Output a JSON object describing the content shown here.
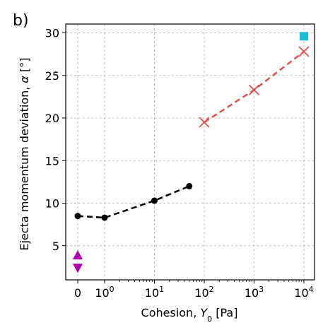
{
  "chart_data": {
    "type": "scatter",
    "panel_label": "b)",
    "xlabel": {
      "prefix": "Cohesion, ",
      "var": "Y",
      "sub": "0",
      "suffix": " [Pa]"
    },
    "ylabel": {
      "prefix": "Ejecta momentum deviation, ",
      "var": "α",
      "suffix": " [°]"
    },
    "x_scale": "symlog",
    "x_ticks": [
      {
        "value": 0,
        "base": "0",
        "exp": ""
      },
      {
        "value": 1,
        "base": "10",
        "exp": "0"
      },
      {
        "value": 10,
        "base": "10",
        "exp": "1"
      },
      {
        "value": 100,
        "base": "10",
        "exp": "2"
      },
      {
        "value": 1000,
        "base": "10",
        "exp": "3"
      },
      {
        "value": 10000,
        "base": "10",
        "exp": "4"
      }
    ],
    "y_ticks": [
      "5",
      "10",
      "15",
      "20",
      "25",
      "30"
    ],
    "ylim": [
      1,
      31
    ],
    "grid": true,
    "series": [
      {
        "marker": "circle",
        "line": "dashed",
        "color": "#000000",
        "x": [
          0,
          1,
          10,
          50
        ],
        "y": [
          8.5,
          8.3,
          10.3,
          12.0
        ]
      },
      {
        "marker": "x",
        "line": "dashed",
        "color": "#e05050",
        "x": [
          100,
          1000,
          10000
        ],
        "y": [
          19.5,
          23.3,
          27.8
        ]
      },
      {
        "marker": "square",
        "line": "none",
        "color": "#17becf",
        "x": [
          10000
        ],
        "y": [
          29.6
        ]
      },
      {
        "marker": "triangle-up",
        "line": "none",
        "color": "#b000b0",
        "x": [
          0
        ],
        "y": [
          3.9
        ]
      },
      {
        "marker": "triangle-down",
        "line": "none",
        "color": "#b000b0",
        "x": [
          0
        ],
        "y": [
          2.4
        ]
      }
    ]
  }
}
